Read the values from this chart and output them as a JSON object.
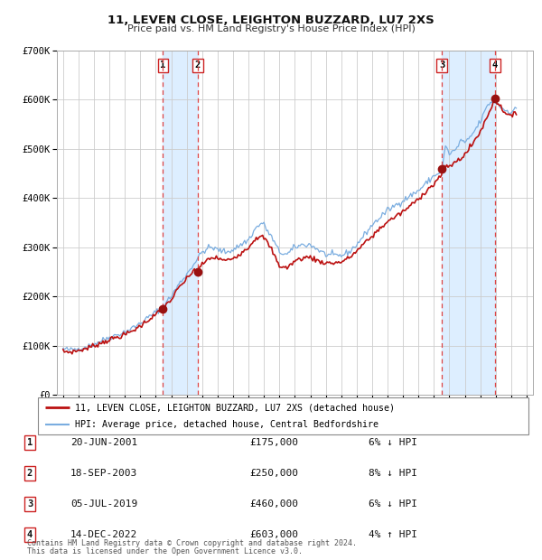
{
  "title": "11, LEVEN CLOSE, LEIGHTON BUZZARD, LU7 2XS",
  "subtitle": "Price paid vs. HM Land Registry's House Price Index (HPI)",
  "legend_line1": "11, LEVEN CLOSE, LEIGHTON BUZZARD, LU7 2XS (detached house)",
  "legend_line2": "HPI: Average price, detached house, Central Bedfordshire",
  "footer1": "Contains HM Land Registry data © Crown copyright and database right 2024.",
  "footer2": "This data is licensed under the Open Government Licence v3.0.",
  "transactions": [
    {
      "num": 1,
      "date": "20-JUN-2001",
      "price": 175000,
      "pct": "6%",
      "dir": "↓",
      "year": 2001.46
    },
    {
      "num": 2,
      "date": "18-SEP-2003",
      "price": 250000,
      "pct": "8%",
      "dir": "↓",
      "year": 2003.71
    },
    {
      "num": 3,
      "date": "05-JUL-2019",
      "price": 460000,
      "pct": "6%",
      "dir": "↓",
      "year": 2019.51
    },
    {
      "num": 4,
      "date": "14-DEC-2022",
      "price": 603000,
      "pct": "4%",
      "dir": "↑",
      "year": 2022.95
    }
  ],
  "hpi_color": "#7aade0",
  "price_color": "#bb1111",
  "marker_color": "#991111",
  "vline_color": "#dd4444",
  "shade_color": "#ddeeff",
  "grid_color": "#cccccc",
  "bg_color": "#ffffff",
  "ylim": [
    0,
    700000
  ],
  "xlim_start": 1994.6,
  "xlim_end": 2025.4,
  "yticks": [
    0,
    100000,
    200000,
    300000,
    400000,
    500000,
    600000,
    700000
  ],
  "ytick_labels": [
    "£0",
    "£100K",
    "£200K",
    "£300K",
    "£400K",
    "£500K",
    "£600K",
    "£700K"
  ],
  "xticks": [
    1995,
    1996,
    1997,
    1998,
    1999,
    2000,
    2001,
    2002,
    2003,
    2004,
    2005,
    2006,
    2007,
    2008,
    2009,
    2010,
    2011,
    2012,
    2013,
    2014,
    2015,
    2016,
    2017,
    2018,
    2019,
    2020,
    2021,
    2022,
    2023,
    2024,
    2025
  ]
}
